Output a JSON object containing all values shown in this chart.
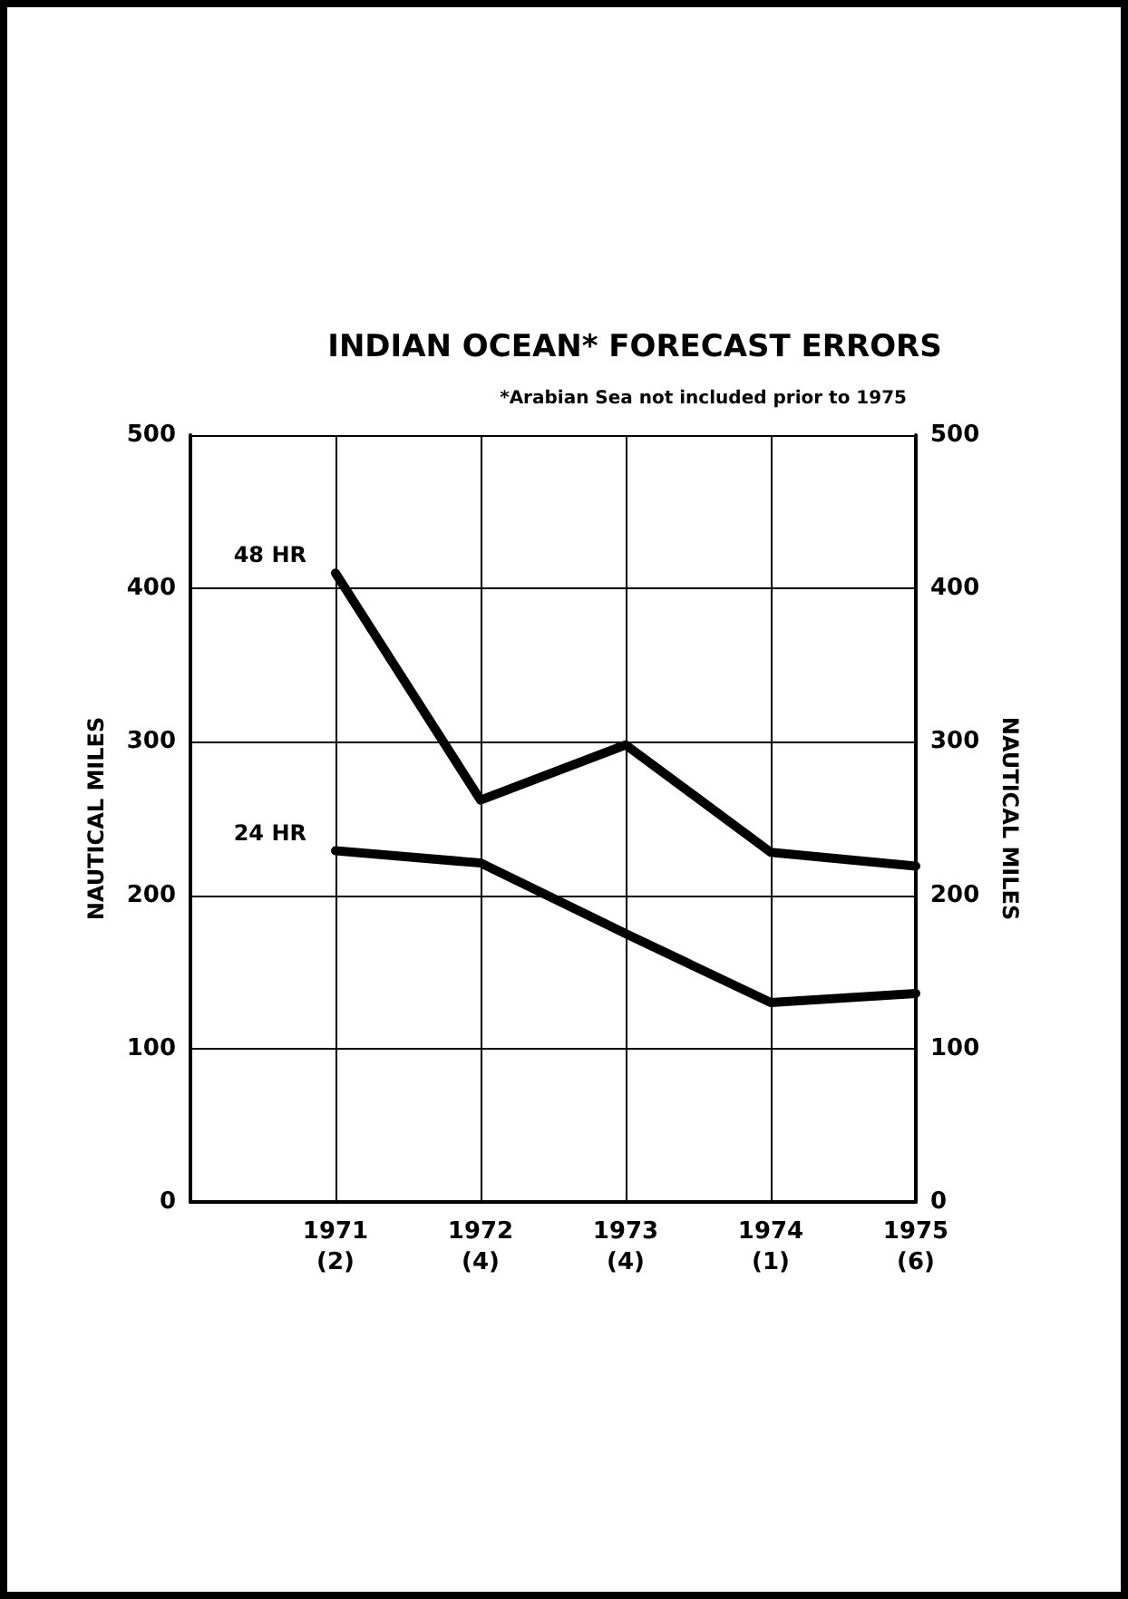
{
  "chart_data": {
    "type": "line",
    "title": "INDIAN OCEAN* FORECAST ERRORS",
    "annotations": [
      "*Arabian Sea not included prior to 1975"
    ],
    "ylabel": "NAUTICAL MILES",
    "y2label": "NAUTICAL MILES",
    "categories": [
      null,
      "1971\n(2)",
      "1972\n(4)",
      "1973\n(4)",
      "1974\n(1)",
      "1975\n(6)"
    ],
    "ylim": [
      0,
      500
    ],
    "yticks": [
      0,
      100,
      200,
      300,
      400,
      500
    ],
    "y2lim": [
      0,
      500
    ],
    "y2ticks": [
      0,
      100,
      200,
      300,
      400,
      500
    ],
    "series": [
      {
        "name": "48 HR",
        "color": "#000000",
        "values": [
          null,
          410,
          262,
          298,
          228,
          219
        ]
      },
      {
        "name": "24 HR",
        "color": "#000000",
        "values": [
          null,
          229,
          221,
          175,
          130,
          136
        ]
      }
    ],
    "grid": true,
    "legend": false,
    "marker": "none",
    "line_style": "solid"
  }
}
